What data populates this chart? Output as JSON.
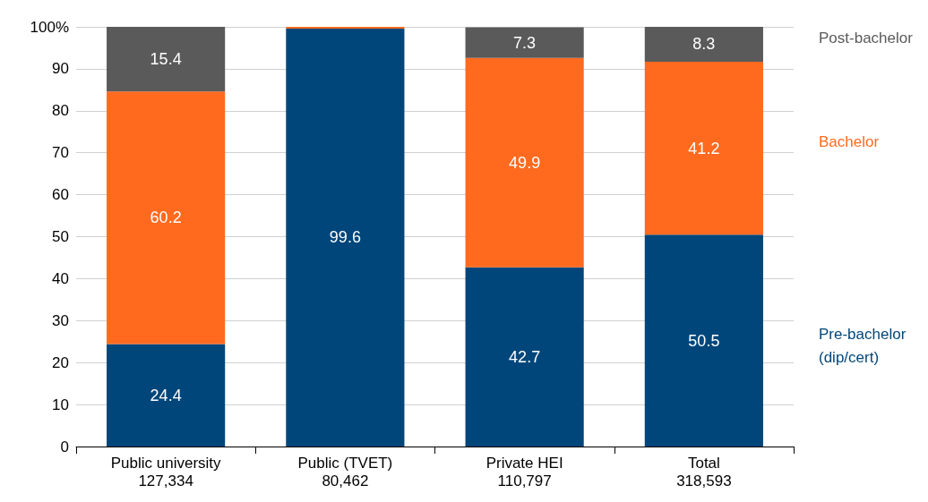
{
  "chart_data": {
    "type": "bar",
    "stacked": true,
    "categories": [
      "Public university\n127,334",
      "Public (TVET)\n80,462",
      "Private HEI\n110,797",
      "Total\n318,593"
    ],
    "series": [
      {
        "name": "Pre-bachelor (dip/cert)",
        "color": "#00467a",
        "values": [
          24.4,
          99.6,
          42.7,
          50.5
        ],
        "value_labels": [
          "24.4",
          "99.6",
          "42.7",
          "50.5"
        ]
      },
      {
        "name": "Bachelor",
        "color": "#ff6a1f",
        "values": [
          60.2,
          0.4,
          49.9,
          41.2
        ],
        "value_labels": [
          "60.2",
          null,
          "49.9",
          "41.2"
        ]
      },
      {
        "name": "Post-bachelor",
        "color": "#5a5a5a",
        "values": [
          15.4,
          0,
          7.3,
          8.3
        ],
        "value_labels": [
          "15.4",
          null,
          "7.3",
          "8.3"
        ]
      }
    ],
    "ylim": [
      0,
      100
    ],
    "yticks": [
      0,
      10,
      20,
      30,
      40,
      50,
      60,
      70,
      80,
      90,
      {
        "value": 100,
        "label": "100%"
      }
    ],
    "grid": "y",
    "legend": false
  }
}
